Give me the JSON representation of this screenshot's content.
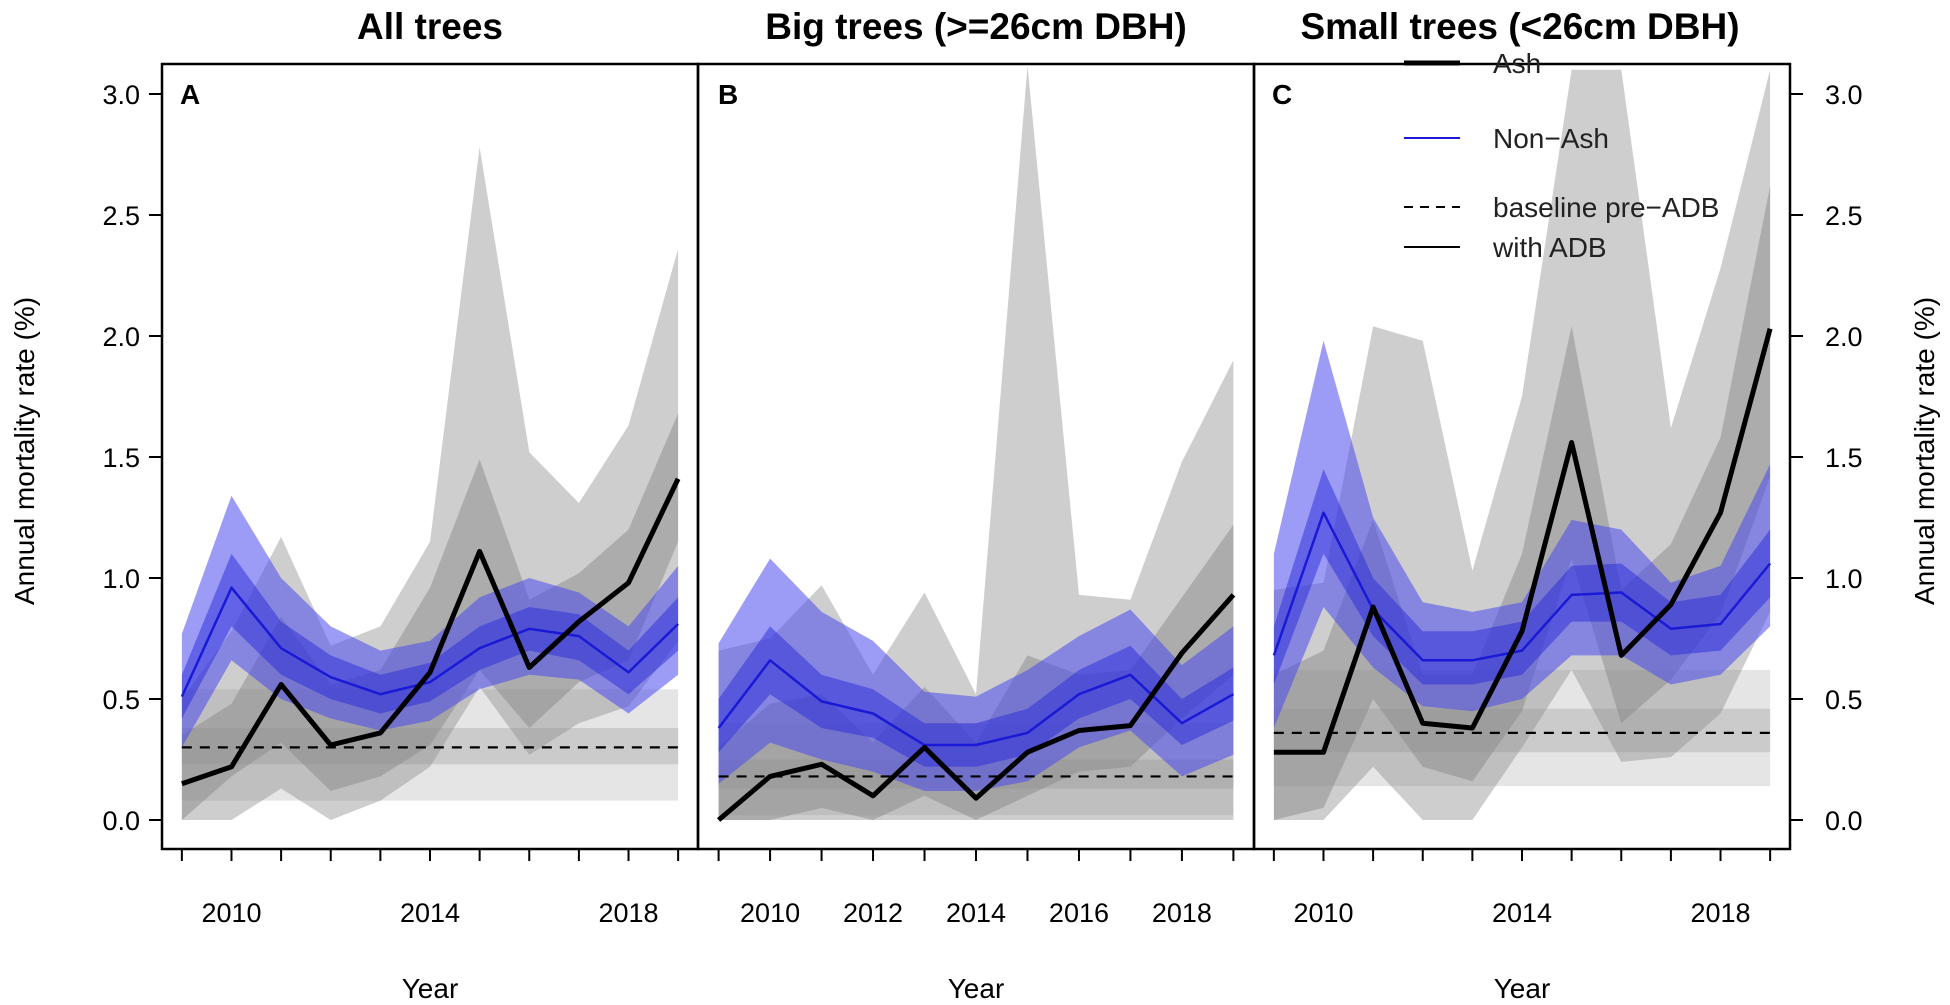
{
  "chart_data": {
    "type": "line",
    "ylabel_left": "Annual mortality rate (%)",
    "ylabel_right": "Annual mortality rate (%)",
    "ylim": [
      0,
      3.1
    ],
    "y_ticks": [
      "0.0",
      "0.5",
      "1.0",
      "1.5",
      "2.0",
      "2.5",
      "3.0"
    ],
    "legend": {
      "position": "top-right",
      "ash": "Ash",
      "non_ash": "Non−Ash",
      "baseline": "baseline pre−ADB",
      "with_adb": "with ADB"
    },
    "colors": {
      "ash": "#000000",
      "non_ash": "#1a1ad6",
      "non_ash_band": "#4a4af0",
      "grey_band": "#8a8a8a"
    },
    "panels": [
      {
        "title": "All trees",
        "label": "A",
        "xlabel": "Year",
        "xlim": [
          2008.6,
          2019.4
        ],
        "x_ticks": [
          "2010",
          "2014",
          "2018"
        ],
        "x": [
          2009,
          2010,
          2011,
          2012,
          2013,
          2014,
          2015,
          2016,
          2017,
          2018,
          2019
        ],
        "series": [
          {
            "name": "Ash",
            "values": [
              0.15,
              0.22,
              0.56,
              0.31,
              0.36,
              0.61,
              1.11,
              0.63,
              0.82,
              0.98,
              1.41
            ],
            "ci_inner": [
              [
                0,
                0.18,
                0.32,
                0.12,
                0.18,
                0.31,
                0.62,
                0.38,
                0.57,
                0.66,
                1.15
              ],
              [
                0.35,
                0.48,
                0.84,
                0.56,
                0.62,
                0.96,
                1.49,
                0.91,
                1.02,
                1.2,
                1.68
              ]
            ],
            "ci_outer": [
              [
                0,
                0,
                0.13,
                0,
                0.08,
                0.22,
                0.55,
                0.27,
                0.4,
                0.47,
                0.74
              ],
              [
                0.5,
                0.78,
                1.17,
                0.72,
                0.8,
                1.15,
                2.78,
                1.52,
                1.31,
                1.63,
                2.36
              ]
            ]
          },
          {
            "name": "Non−Ash",
            "values": [
              0.51,
              0.96,
              0.71,
              0.59,
              0.52,
              0.57,
              0.71,
              0.79,
              0.76,
              0.61,
              0.81
            ],
            "ci_inner": [
              [
                0.42,
                0.8,
                0.6,
                0.5,
                0.44,
                0.49,
                0.62,
                0.7,
                0.66,
                0.52,
                0.7
              ],
              [
                0.6,
                1.1,
                0.82,
                0.68,
                0.6,
                0.65,
                0.8,
                0.88,
                0.85,
                0.7,
                0.92
              ]
            ],
            "ci_outer": [
              [
                0.3,
                0.66,
                0.5,
                0.42,
                0.37,
                0.41,
                0.54,
                0.6,
                0.58,
                0.44,
                0.6
              ],
              [
                0.77,
                1.34,
                1.0,
                0.8,
                0.7,
                0.74,
                0.92,
                1.0,
                0.94,
                0.8,
                1.05
              ]
            ]
          }
        ],
        "baseline": {
          "value": 0.3,
          "ci_inner": [
            0.23,
            0.38
          ],
          "ci_outer": [
            0.08,
            0.54
          ]
        }
      },
      {
        "title": "Big trees (>=26cm DBH)",
        "label": "B",
        "xlabel": "Year",
        "xlim": [
          2008.6,
          2019.4
        ],
        "x_ticks": [
          "2010",
          "2012",
          "2014",
          "2016",
          "2018"
        ],
        "x": [
          2009,
          2010,
          2011,
          2012,
          2013,
          2014,
          2015,
          2016,
          2017,
          2018,
          2019
        ],
        "series": [
          {
            "name": "Ash",
            "values": [
              0.0,
              0.18,
              0.23,
              0.1,
              0.3,
              0.09,
              0.28,
              0.37,
              0.39,
              0.69,
              0.93
            ],
            "ci_inner": [
              [
                0,
                0,
                0.05,
                0,
                0.1,
                0,
                0.1,
                0.2,
                0.22,
                0.42,
                0.6
              ],
              [
                0.3,
                0.48,
                0.52,
                0.32,
                0.55,
                0.32,
                0.68,
                0.6,
                0.62,
                0.92,
                1.22
              ]
            ],
            "ci_outer": [
              [
                0,
                0,
                0,
                0,
                0,
                0,
                0,
                0,
                0,
                0,
                0
              ],
              [
                0.7,
                0.75,
                0.97,
                0.6,
                0.94,
                0.52,
                3.2,
                0.93,
                0.91,
                1.48,
                1.9
              ]
            ]
          },
          {
            "name": "Non−Ash",
            "values": [
              0.38,
              0.66,
              0.49,
              0.44,
              0.31,
              0.31,
              0.36,
              0.52,
              0.6,
              0.4,
              0.52
            ],
            "ci_inner": [
              [
                0.28,
                0.52,
                0.38,
                0.34,
                0.22,
                0.22,
                0.27,
                0.42,
                0.5,
                0.31,
                0.41
              ],
              [
                0.5,
                0.8,
                0.6,
                0.54,
                0.4,
                0.4,
                0.46,
                0.62,
                0.72,
                0.5,
                0.63
              ]
            ],
            "ci_outer": [
              [
                0.15,
                0.32,
                0.25,
                0.2,
                0.12,
                0.12,
                0.16,
                0.3,
                0.37,
                0.18,
                0.27
              ],
              [
                0.73,
                1.08,
                0.86,
                0.74,
                0.53,
                0.51,
                0.62,
                0.76,
                0.87,
                0.64,
                0.8
              ]
            ]
          }
        ],
        "baseline": {
          "value": 0.18,
          "ci_inner": [
            0.13,
            0.25
          ],
          "ci_outer": [
            0.02,
            0.4
          ]
        }
      },
      {
        "title": "Small trees (<26cm DBH)",
        "label": "C",
        "xlabel": "Year",
        "xlim": [
          2008.6,
          2019.4
        ],
        "x_ticks": [
          "2010",
          "2014",
          "2018"
        ],
        "x": [
          2009,
          2010,
          2011,
          2012,
          2013,
          2014,
          2015,
          2016,
          2017,
          2018,
          2019
        ],
        "series": [
          {
            "name": "Ash",
            "values": [
              0.28,
              0.28,
              0.88,
              0.4,
              0.38,
              0.78,
              1.56,
              0.68,
              0.89,
              1.27,
              2.03
            ],
            "ci_inner": [
              [
                0,
                0.05,
                0.5,
                0.22,
                0.16,
                0.45,
                1.08,
                0.4,
                0.58,
                0.85,
                1.42
              ],
              [
                0.6,
                0.7,
                1.24,
                0.6,
                0.6,
                1.1,
                2.04,
                0.95,
                1.14,
                1.58,
                2.62
              ]
            ],
            "ci_outer": [
              [
                0,
                0,
                0.22,
                0,
                0,
                0.3,
                0.62,
                0.24,
                0.26,
                0.44,
                0.86
              ],
              [
                0.95,
                0.98,
                2.04,
                1.98,
                1.03,
                1.75,
                3.1,
                3.1,
                1.62,
                2.28,
                3.1
              ]
            ]
          },
          {
            "name": "Non−Ash",
            "values": [
              0.68,
              1.27,
              0.87,
              0.66,
              0.66,
              0.7,
              0.93,
              0.94,
              0.79,
              0.81,
              1.06
            ],
            "ci_inner": [
              [
                0.56,
                1.1,
                0.76,
                0.56,
                0.56,
                0.6,
                0.82,
                0.82,
                0.68,
                0.7,
                0.92
              ],
              [
                0.8,
                1.45,
                1.0,
                0.78,
                0.78,
                0.82,
                1.05,
                1.06,
                0.9,
                0.93,
                1.2
              ]
            ],
            "ci_outer": [
              [
                0.38,
                0.88,
                0.63,
                0.47,
                0.45,
                0.5,
                0.68,
                0.68,
                0.56,
                0.6,
                0.8
              ],
              [
                1.1,
                1.98,
                1.25,
                0.9,
                0.86,
                0.9,
                1.24,
                1.2,
                0.98,
                1.05,
                1.47
              ]
            ]
          }
        ],
        "baseline": {
          "value": 0.36,
          "ci_inner": [
            0.28,
            0.46
          ],
          "ci_outer": [
            0.14,
            0.62
          ]
        }
      }
    ]
  }
}
